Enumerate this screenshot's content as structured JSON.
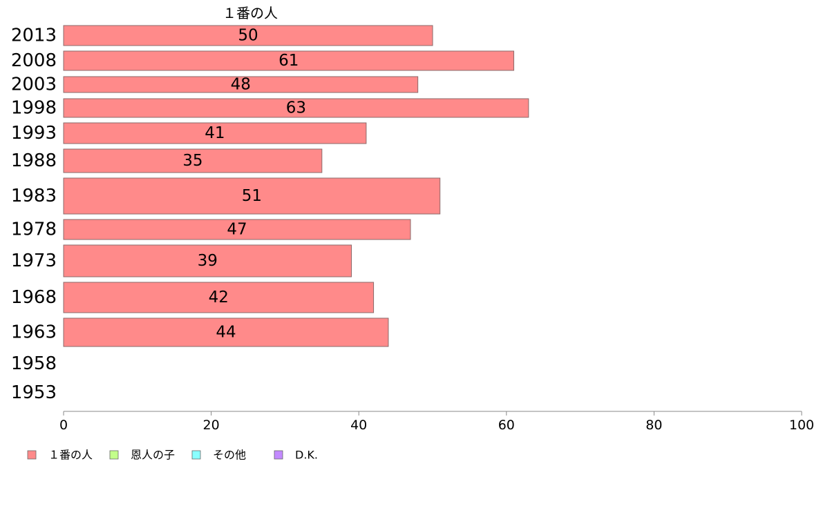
{
  "chart_data": {
    "type": "bar",
    "orientation": "horizontal",
    "stacked": true,
    "categories": [
      "2013",
      "2008",
      "2003",
      "1998",
      "1993",
      "1988",
      "1983",
      "1978",
      "1973",
      "1968",
      "1963",
      "1958",
      "1953"
    ],
    "series": [
      {
        "name": "１番の人",
        "color": "#ff8a8a",
        "values": [
          50,
          61,
          48,
          63,
          41,
          35,
          51,
          47,
          39,
          42,
          44,
          null,
          null
        ]
      },
      {
        "name": "恩人の子",
        "color": "#c3ff8a",
        "values": [
          null,
          null,
          null,
          null,
          null,
          null,
          null,
          null,
          null,
          null,
          null,
          null,
          null
        ]
      },
      {
        "name": "その他",
        "color": "#8affff",
        "values": [
          null,
          null,
          null,
          null,
          null,
          null,
          null,
          null,
          null,
          null,
          null,
          null,
          null
        ]
      },
      {
        "name": "D.K.",
        "color": "#c38aff",
        "values": [
          null,
          null,
          null,
          null,
          null,
          null,
          null,
          null,
          null,
          null,
          null,
          null,
          null
        ]
      }
    ],
    "top_series_label": "１番の人",
    "xlim": [
      0,
      100
    ],
    "x_ticks": [
      "0",
      "20",
      "40",
      "60",
      "80",
      "100"
    ],
    "grid": false,
    "legend_position": "bottom-left"
  }
}
